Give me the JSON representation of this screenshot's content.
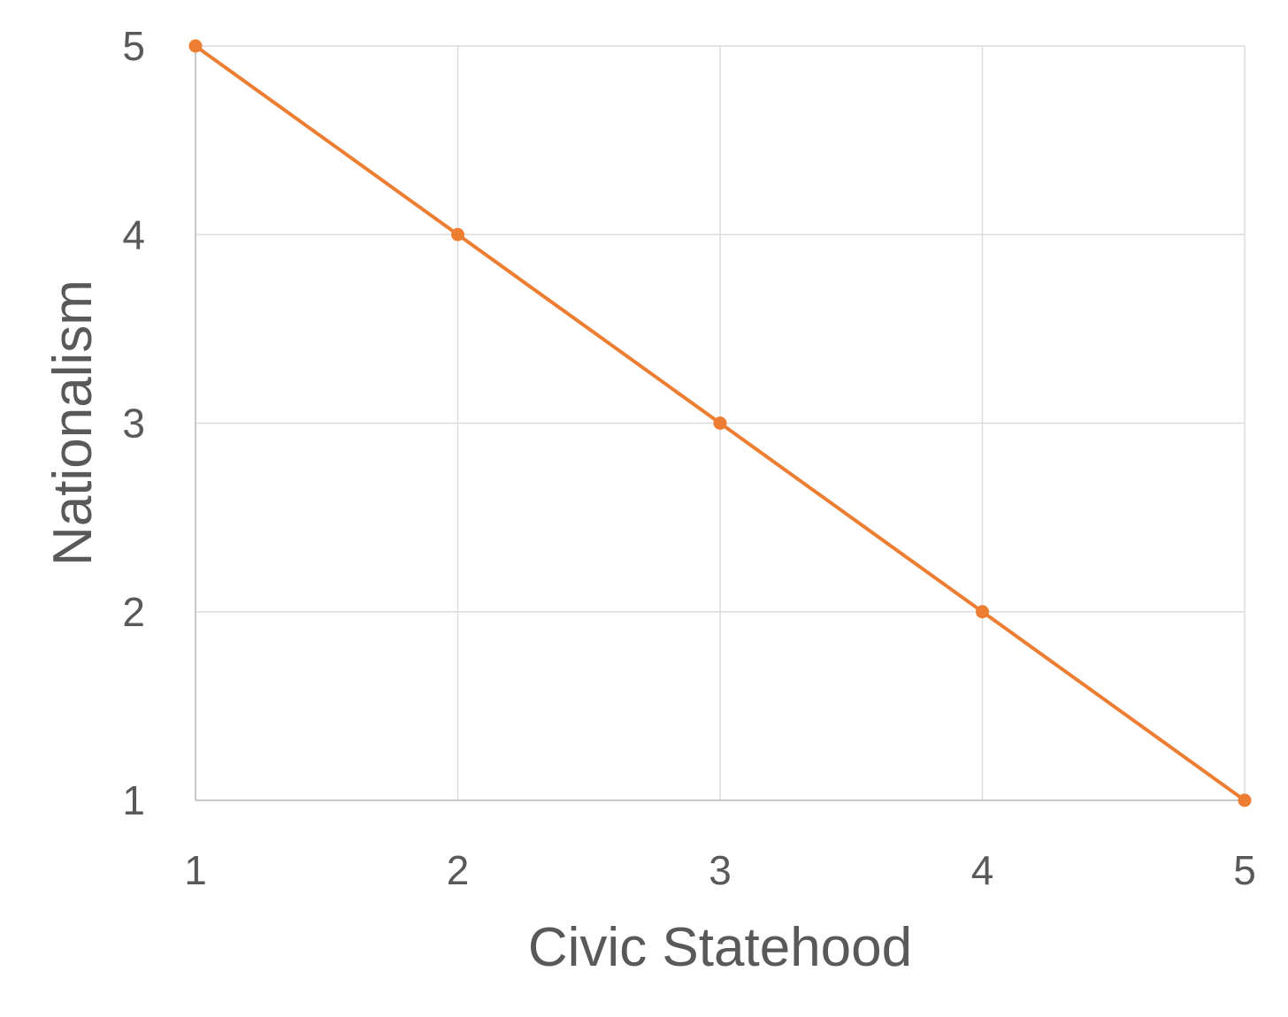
{
  "chart_data": {
    "type": "line",
    "title": "",
    "xlabel": "Civic Statehood",
    "ylabel": "Nationalism",
    "xlim": [
      1,
      5
    ],
    "ylim": [
      1,
      5
    ],
    "x_ticks": [
      "1",
      "2",
      "3",
      "4",
      "5"
    ],
    "y_ticks": [
      "1",
      "2",
      "3",
      "4",
      "5"
    ],
    "grid": true,
    "legend": "none",
    "series": [
      {
        "x": [
          1,
          2,
          3,
          4,
          5
        ],
        "y": [
          5,
          4,
          3,
          2,
          1
        ],
        "color": "#ED7D31",
        "markers": true
      }
    ]
  }
}
